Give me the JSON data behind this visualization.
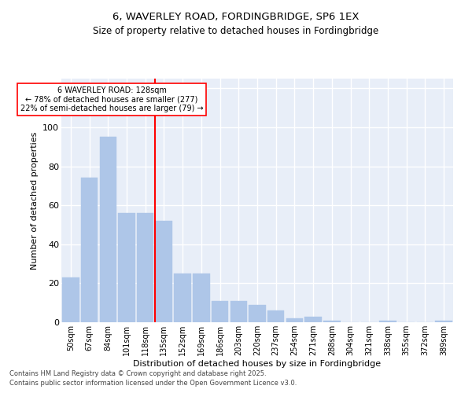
{
  "title1": "6, WAVERLEY ROAD, FORDINGBRIDGE, SP6 1EX",
  "title2": "Size of property relative to detached houses in Fordingbridge",
  "xlabel": "Distribution of detached houses by size in Fordingbridge",
  "ylabel": "Number of detached properties",
  "categories": [
    "50sqm",
    "67sqm",
    "84sqm",
    "101sqm",
    "118sqm",
    "135sqm",
    "152sqm",
    "169sqm",
    "186sqm",
    "203sqm",
    "220sqm",
    "237sqm",
    "254sqm",
    "271sqm",
    "288sqm",
    "304sqm",
    "321sqm",
    "338sqm",
    "355sqm",
    "372sqm",
    "389sqm"
  ],
  "values": [
    23,
    74,
    95,
    56,
    56,
    52,
    25,
    25,
    11,
    11,
    9,
    6,
    2,
    3,
    1,
    0,
    0,
    1,
    0,
    0,
    1
  ],
  "bar_color": "#aec6e8",
  "bar_edgecolor": "#aec6e8",
  "vline_color": "red",
  "annotation_text": "6 WAVERLEY ROAD: 128sqm\n← 78% of detached houses are smaller (277)\n22% of semi-detached houses are larger (79) →",
  "annotation_box_color": "white",
  "annotation_box_edgecolor": "red",
  "ylim": [
    0,
    125
  ],
  "yticks": [
    0,
    20,
    40,
    60,
    80,
    100,
    120
  ],
  "background_color": "#e8eef8",
  "grid_color": "white",
  "footer1": "Contains HM Land Registry data © Crown copyright and database right 2025.",
  "footer2": "Contains public sector information licensed under the Open Government Licence v3.0."
}
